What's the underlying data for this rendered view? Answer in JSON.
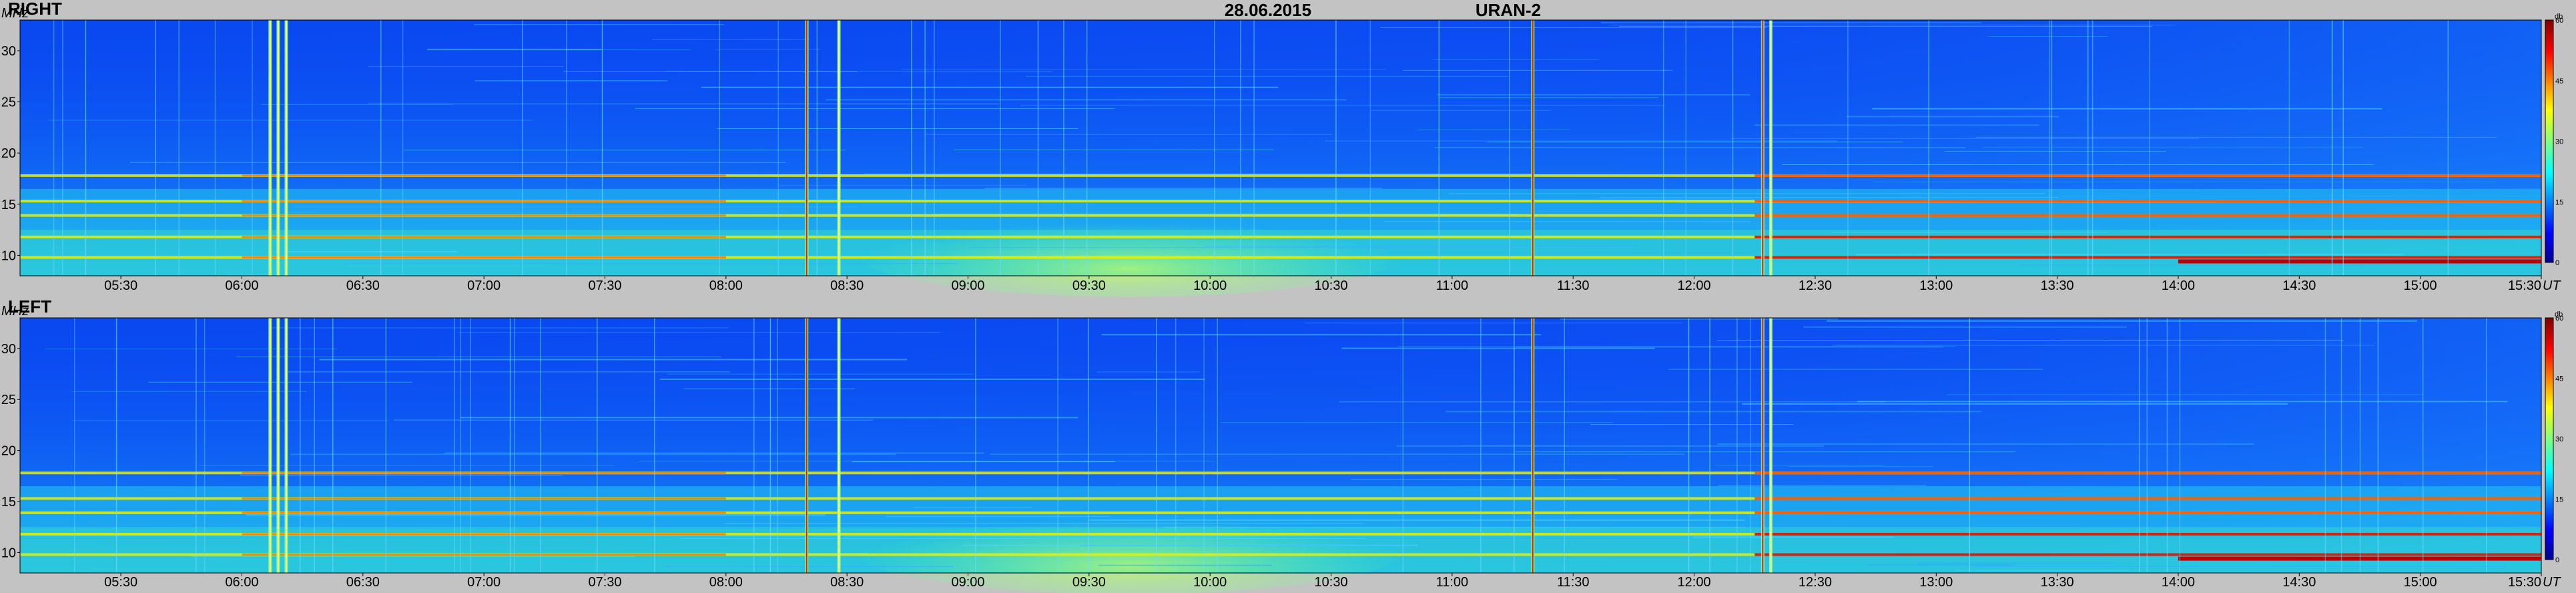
{
  "header": {
    "date": "28.06.2015",
    "instrument": "URAN-2"
  },
  "chart_data": [
    {
      "type": "heatmap",
      "title": "RIGHT",
      "ylabel": "MHz",
      "xlabel": "UT",
      "ylim": [
        8,
        33
      ],
      "xlim": [
        "05:05",
        "15:30"
      ],
      "yticks": [
        10,
        15,
        20,
        25,
        30
      ],
      "ytick_labels": [
        "10",
        "15",
        "20",
        "25",
        "30"
      ],
      "xtick_labels": [
        "05:30",
        "06:00",
        "06:30",
        "07:00",
        "07:30",
        "08:00",
        "08:30",
        "09:00",
        "09:30",
        "10:00",
        "10:30",
        "11:00",
        "11:30",
        "12:00",
        "12:30",
        "13:00",
        "13:30",
        "14:00",
        "14:30",
        "15:00",
        "15:30"
      ],
      "colorbar": {
        "unit": "db",
        "range": [
          0,
          60
        ],
        "ticks": [
          "0",
          "15",
          "30",
          "45",
          "60"
        ]
      },
      "noise_bands_MHz": [
        9.8,
        11.8,
        13.9,
        15.3,
        17.8
      ],
      "broadband_bursts_UT": [
        "06:07",
        "06:09",
        "06:11",
        "08:20",
        "08:28",
        "11:20",
        "12:17",
        "12:19"
      ]
    },
    {
      "type": "heatmap",
      "title": "LEFT",
      "ylabel": "MHz",
      "xlabel": "UT",
      "ylim": [
        8,
        33
      ],
      "xlim": [
        "05:05",
        "15:30"
      ],
      "yticks": [
        10,
        15,
        20,
        25,
        30
      ],
      "ytick_labels": [
        "10",
        "15",
        "20",
        "25",
        "30"
      ],
      "xtick_labels": [
        "05:30",
        "06:00",
        "06:30",
        "07:00",
        "07:30",
        "08:00",
        "08:30",
        "09:00",
        "09:30",
        "10:00",
        "10:30",
        "11:00",
        "11:30",
        "12:00",
        "12:30",
        "13:00",
        "13:30",
        "14:00",
        "14:30",
        "15:00",
        "15:30"
      ],
      "colorbar": {
        "unit": "db",
        "range": [
          0,
          60
        ],
        "ticks": [
          "0",
          "15",
          "30",
          "45",
          "60"
        ]
      },
      "noise_bands_MHz": [
        9.8,
        11.8,
        13.9,
        15.3,
        17.8
      ],
      "broadband_bursts_UT": [
        "06:07",
        "06:09",
        "06:11",
        "08:20",
        "08:28",
        "11:20",
        "12:17",
        "12:19"
      ]
    }
  ],
  "colors": {
    "background": "#c3c3c3",
    "colormap": [
      "#00008f",
      "#0000ff",
      "#0080ff",
      "#00ffff",
      "#80ff80",
      "#ffff00",
      "#ff8000",
      "#ff0000",
      "#800000"
    ]
  }
}
